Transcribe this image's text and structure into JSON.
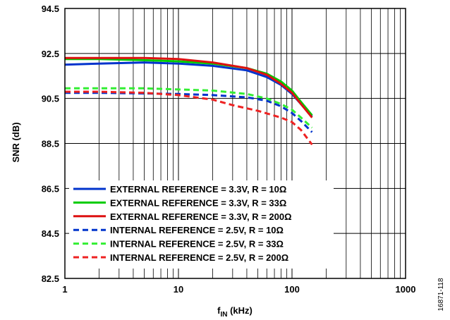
{
  "chart_data": {
    "type": "line",
    "x_scale": "log",
    "xlabel_main": "f",
    "xlabel_sub": "IN",
    "xlabel_unit": " (kHz)",
    "ylabel": "SNR (dB)",
    "xlim": [
      1,
      1000
    ],
    "ylim": [
      82.5,
      94.5
    ],
    "x_ticks": [
      1,
      10,
      100,
      1000
    ],
    "x_tick_labels": [
      "1",
      "10",
      "100",
      "1000"
    ],
    "y_ticks": [
      82.5,
      84.5,
      86.5,
      88.5,
      90.5,
      92.5,
      94.5
    ],
    "y_tick_labels": [
      "82.5",
      "84.5",
      "86.5",
      "88.5",
      "90.5",
      "92.5",
      "94.5"
    ],
    "grid": true,
    "legend_position": "bottom-left",
    "side_label": "16871-118",
    "series": [
      {
        "name": "EXTERNAL REFERENCE = 3.3V, R = 10Ω",
        "color": "#0033cc",
        "dash": "solid",
        "x": [
          1,
          2,
          5,
          10,
          20,
          40,
          60,
          80,
          100,
          120,
          150
        ],
        "y": [
          92.0,
          92.05,
          92.1,
          92.05,
          91.95,
          91.75,
          91.45,
          91.1,
          90.7,
          90.25,
          89.7
        ]
      },
      {
        "name": "EXTERNAL REFERENCE = 3.3V, R = 33Ω",
        "color": "#00cc00",
        "dash": "solid",
        "x": [
          1,
          2,
          5,
          10,
          20,
          40,
          60,
          80,
          100,
          120,
          150
        ],
        "y": [
          92.25,
          92.25,
          92.2,
          92.15,
          92.05,
          91.85,
          91.6,
          91.25,
          90.85,
          90.35,
          89.75
        ]
      },
      {
        "name": "EXTERNAL REFERENCE = 3.3V, R = 200Ω",
        "color": "#dd1111",
        "dash": "solid",
        "x": [
          1,
          2,
          5,
          10,
          20,
          40,
          60,
          80,
          100,
          120,
          150
        ],
        "y": [
          92.3,
          92.3,
          92.3,
          92.25,
          92.1,
          91.85,
          91.55,
          91.15,
          90.75,
          90.25,
          89.65
        ]
      },
      {
        "name": "INTERNAL REFERENCE = 2.5V, R = 10Ω",
        "color": "#0033cc",
        "dash": "dashed",
        "x": [
          1,
          2,
          5,
          10,
          20,
          40,
          60,
          80,
          100,
          120,
          150
        ],
        "y": [
          90.75,
          90.75,
          90.72,
          90.7,
          90.65,
          90.55,
          90.4,
          90.15,
          89.85,
          89.5,
          89.0
        ]
      },
      {
        "name": "INTERNAL REFERENCE = 2.5V, R = 33Ω",
        "color": "#33ee33",
        "dash": "dashed",
        "x": [
          1,
          2,
          5,
          10,
          20,
          40,
          60,
          80,
          100,
          120,
          150
        ],
        "y": [
          90.95,
          90.95,
          90.95,
          90.9,
          90.85,
          90.7,
          90.5,
          90.25,
          90.0,
          89.65,
          89.2
        ]
      },
      {
        "name": "INTERNAL REFERENCE = 2.5V, R = 200Ω",
        "color": "#ee2222",
        "dash": "dashed",
        "x": [
          1,
          2,
          5,
          10,
          20,
          30,
          50,
          80,
          100,
          120,
          150
        ],
        "y": [
          90.8,
          90.8,
          90.75,
          90.65,
          90.45,
          90.2,
          89.95,
          89.65,
          89.45,
          89.1,
          88.45
        ]
      }
    ]
  }
}
